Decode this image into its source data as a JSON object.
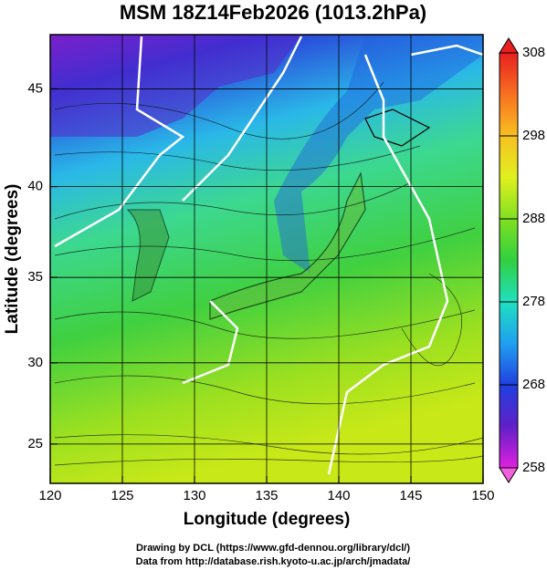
{
  "title": "MSM 18Z14Feb2026 (1013.2hPa)",
  "x_axis": {
    "label": "Longitude (degrees)",
    "lim": [
      120,
      150
    ],
    "ticks": [
      120,
      125,
      130,
      135,
      140,
      145,
      150
    ]
  },
  "y_axis": {
    "label": "Latitude  (degrees)",
    "lim": [
      22.5,
      47.6
    ],
    "ticks": [
      25,
      30,
      35,
      40,
      45
    ]
  },
  "colorbar": {
    "lim": [
      258,
      308
    ],
    "ticks": [
      258,
      268,
      278,
      288,
      298,
      308
    ]
  },
  "credits": [
    "Drawing by DCL (https://www.gfd-dennou.org/library/dcl/)",
    "Data from http://database.rish.kyoto-u.ac.jp/arch/jmadata/"
  ]
}
